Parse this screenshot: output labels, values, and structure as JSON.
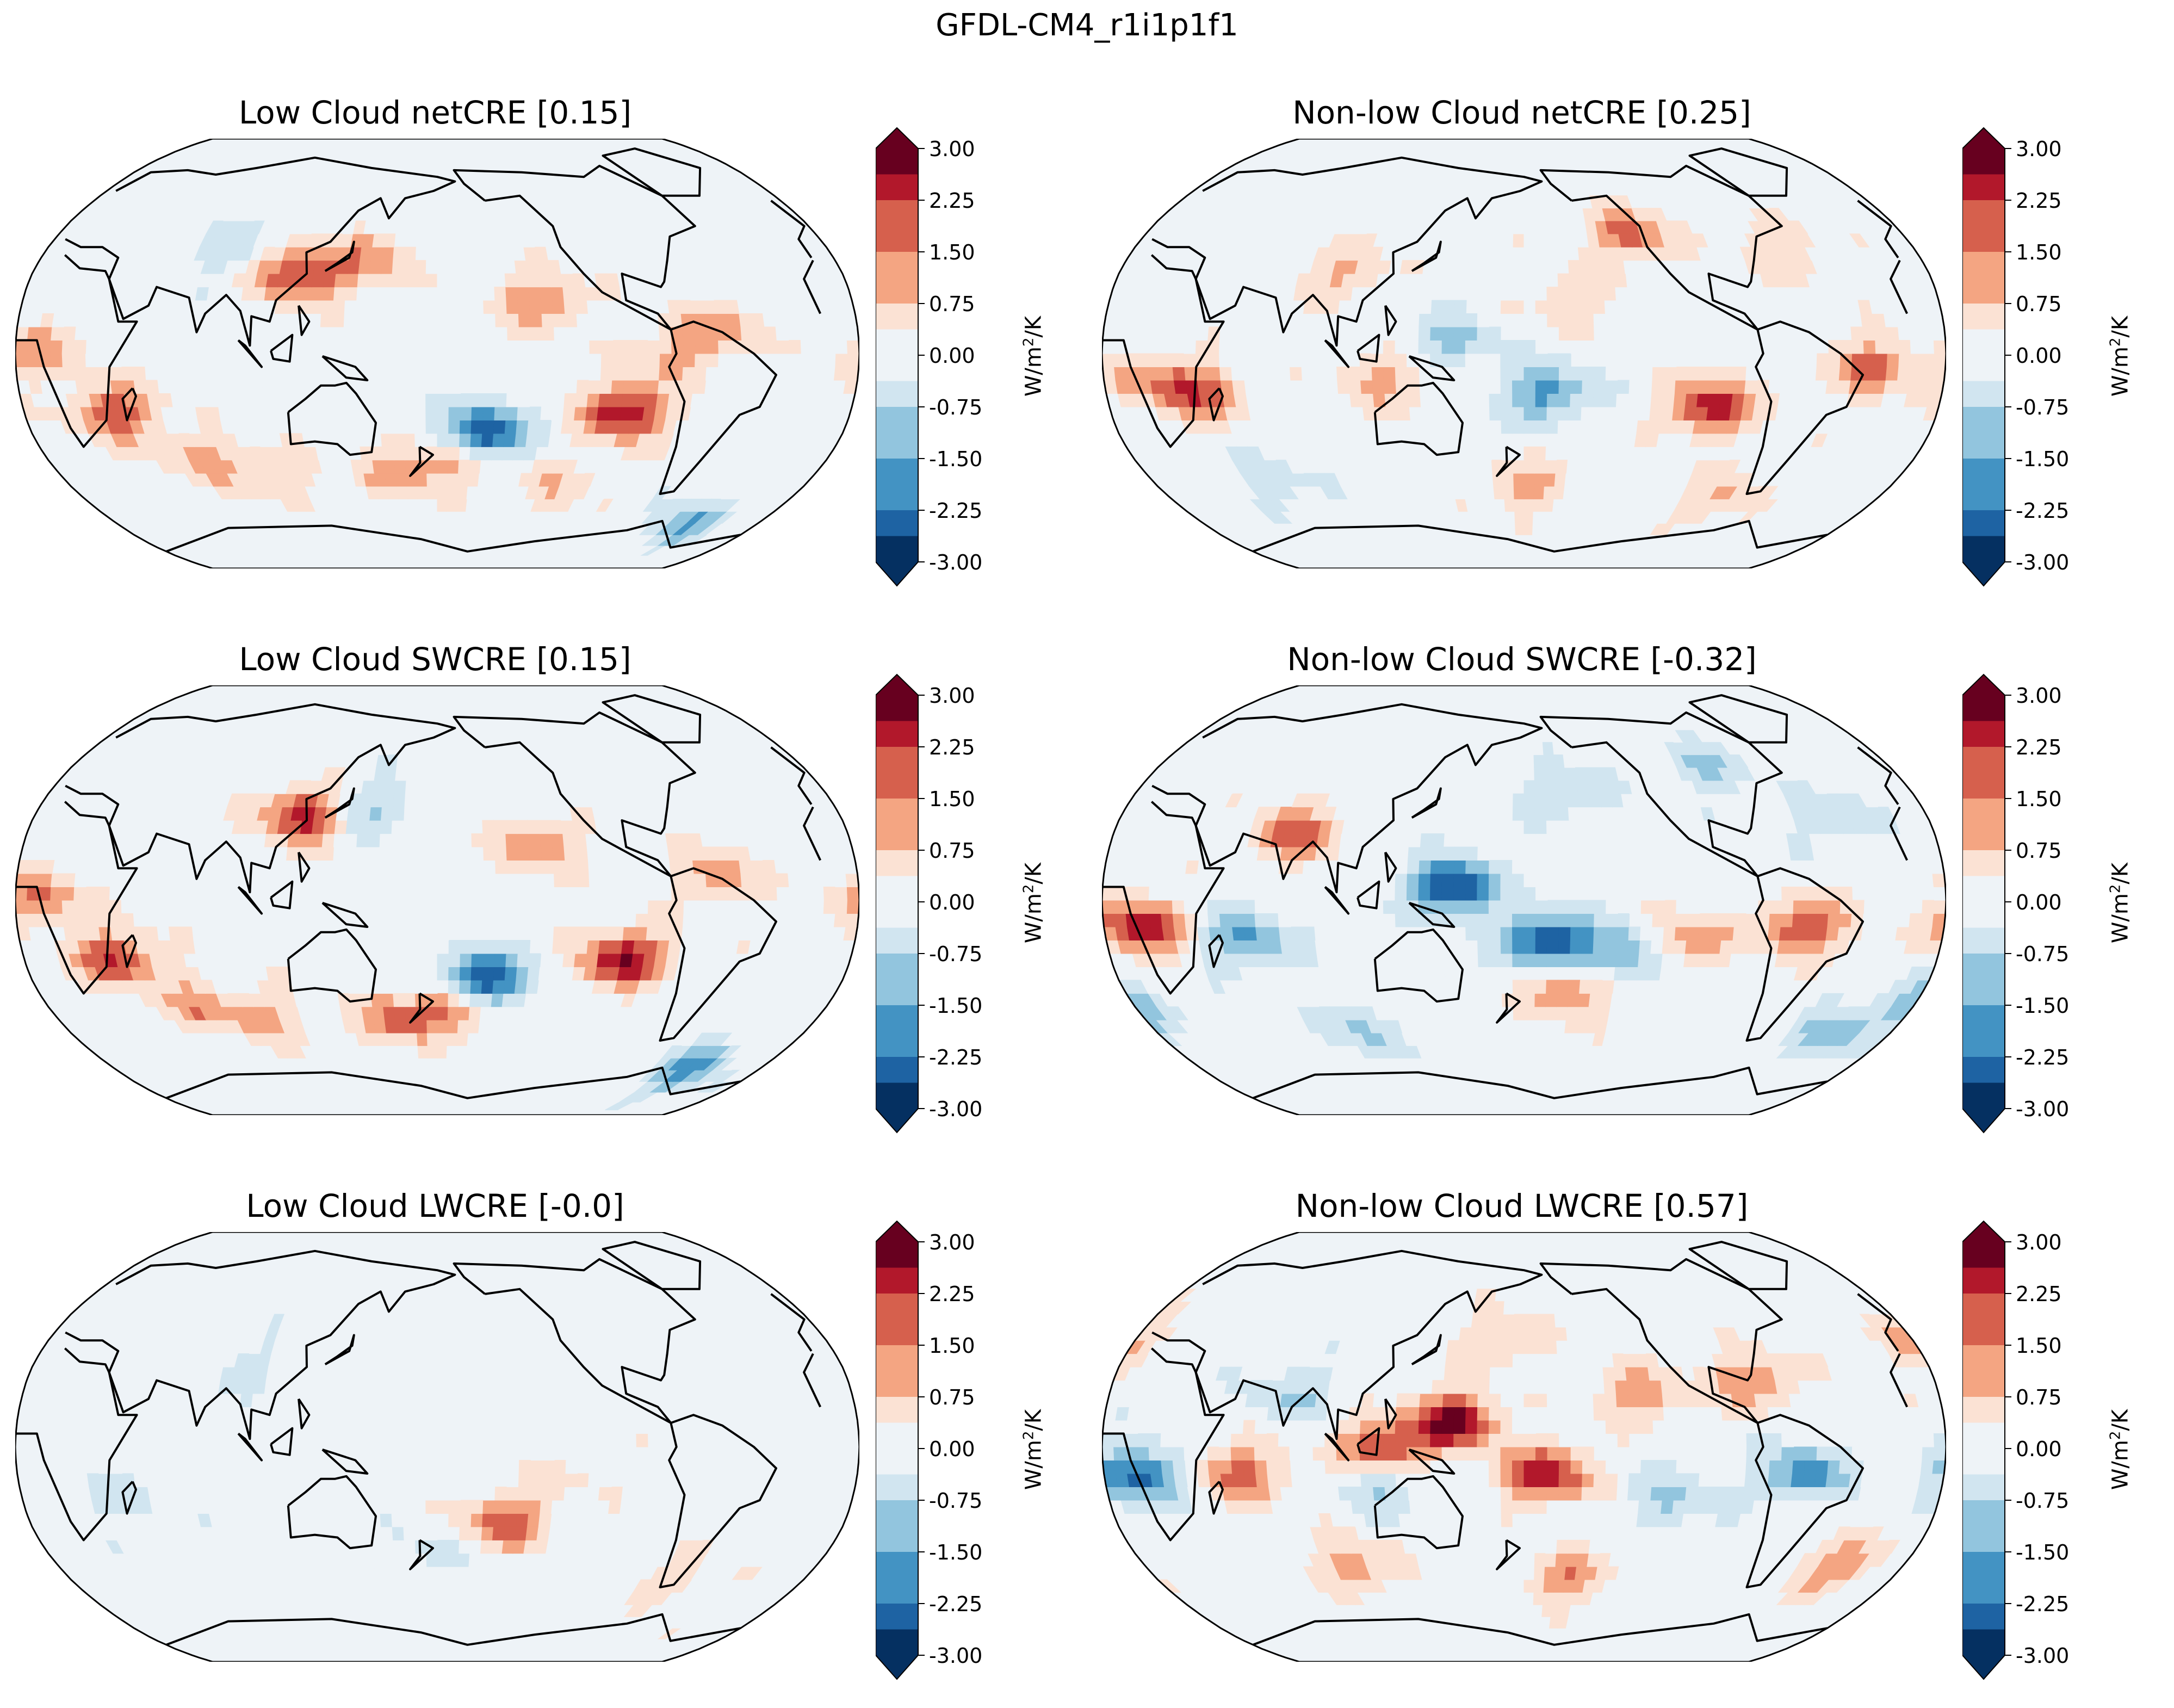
{
  "figure": {
    "title": "GFDL-CM4_r1i1p1f1"
  },
  "colorbar": {
    "label_prefix": "W/m",
    "label_exponent": "2",
    "label_suffix": "/K",
    "ticks": [
      "3.00",
      "2.25",
      "1.50",
      "0.75",
      "0.00",
      "-0.75",
      "-1.50",
      "-2.25",
      "-3.00"
    ],
    "tick_values": [
      3.0,
      2.25,
      1.5,
      0.75,
      0.0,
      -0.75,
      -1.5,
      -2.25,
      -3.0
    ],
    "range": [
      -3.0,
      3.0
    ],
    "extend": "both",
    "colormap": "RdBu_r",
    "colors": [
      "#053061",
      "#1e63a3",
      "#4393c3",
      "#92c5de",
      "#d1e5f0",
      "#eef3f7",
      "#fbe2d4",
      "#f4a582",
      "#d6604d",
      "#b2182b",
      "#67001f"
    ]
  },
  "panels": [
    {
      "title": "Low Cloud netCRE [0.15]",
      "variable": "netCRE",
      "cloud": "Low Cloud",
      "global_mean": 0.15
    },
    {
      "title": "Non-low Cloud netCRE [0.25]",
      "variable": "netCRE",
      "cloud": "Non-low Cloud",
      "global_mean": 0.25
    },
    {
      "title": "Low Cloud SWCRE [0.15]",
      "variable": "SWCRE",
      "cloud": "Low Cloud",
      "global_mean": 0.15
    },
    {
      "title": "Non-low Cloud SWCRE [-0.32]",
      "variable": "SWCRE",
      "cloud": "Non-low Cloud",
      "global_mean": -0.32
    },
    {
      "title": "Low Cloud LWCRE [-0.0]",
      "variable": "LWCRE",
      "cloud": "Low Cloud",
      "global_mean": -0.0
    },
    {
      "title": "Non-low Cloud LWCRE [0.57]",
      "variable": "LWCRE",
      "cloud": "Non-low Cloud",
      "global_mean": 0.57
    }
  ],
  "map": {
    "projection": "Robinson",
    "central_longitude": 180
  },
  "anomalies": [
    [
      {
        "lon": 120,
        "lat": 30,
        "v": 2.4
      },
      {
        "lon": 262,
        "lat": -22,
        "v": 2.8
      },
      {
        "lon": 200,
        "lat": -30,
        "v": -3
      },
      {
        "lon": 188,
        "lat": -40,
        "v": 1.4
      },
      {
        "lon": 160,
        "lat": -45,
        "v": 1.2
      },
      {
        "lon": 70,
        "lat": -40,
        "v": 1.0
      },
      {
        "lon": 40,
        "lat": -22,
        "v": 2.0
      },
      {
        "lon": 10,
        "lat": 0,
        "v": 1.3
      },
      {
        "lon": 300,
        "lat": 10,
        "v": 1.2
      },
      {
        "lon": 225,
        "lat": 20,
        "v": 1.5
      },
      {
        "lon": 150,
        "lat": 35,
        "v": 1.2
      },
      {
        "lon": 320,
        "lat": -65,
        "v": -1.5
      },
      {
        "lon": 80,
        "lat": 40,
        "v": -0.7
      },
      {
        "lon": 280,
        "lat": 0,
        "v": 1.0
      },
      {
        "lon": 240,
        "lat": -50,
        "v": 0.8
      },
      {
        "lon": 100,
        "lat": -45,
        "v": 1.0
      }
    ],
    [
      {
        "lon": 262,
        "lat": -20,
        "v": 2.6
      },
      {
        "lon": 230,
        "lat": 45,
        "v": 1.8
      },
      {
        "lon": 190,
        "lat": -15,
        "v": -1.8
      },
      {
        "lon": 150,
        "lat": 5,
        "v": -1.0
      },
      {
        "lon": 40,
        "lat": -15,
        "v": 1.8
      },
      {
        "lon": 20,
        "lat": -10,
        "v": 1.2
      },
      {
        "lon": 330,
        "lat": -5,
        "v": 1.8
      },
      {
        "lon": 180,
        "lat": -50,
        "v": 1.2
      },
      {
        "lon": 120,
        "lat": -10,
        "v": 1.2
      },
      {
        "lon": 200,
        "lat": 20,
        "v": 0.8
      },
      {
        "lon": 280,
        "lat": -55,
        "v": 1.0
      },
      {
        "lon": 60,
        "lat": -50,
        "v": -0.6
      },
      {
        "lon": 100,
        "lat": 30,
        "v": 1.0
      },
      {
        "lon": 300,
        "lat": 40,
        "v": 0.9
      }
    ],
    [
      {
        "lon": 120,
        "lat": 32,
        "v": 2.5
      },
      {
        "lon": 262,
        "lat": -22,
        "v": 2.8
      },
      {
        "lon": 200,
        "lat": -30,
        "v": -3
      },
      {
        "lon": 188,
        "lat": -40,
        "v": 1.8
      },
      {
        "lon": 160,
        "lat": -45,
        "v": 1.6
      },
      {
        "lon": 40,
        "lat": -22,
        "v": 2.2
      },
      {
        "lon": 70,
        "lat": -40,
        "v": 1.3
      },
      {
        "lon": 300,
        "lat": 10,
        "v": 1.2
      },
      {
        "lon": 225,
        "lat": 20,
        "v": 1.4
      },
      {
        "lon": 320,
        "lat": -65,
        "v": -1.8
      },
      {
        "lon": 150,
        "lat": 35,
        "v": -1.0
      },
      {
        "lon": 10,
        "lat": 0,
        "v": 1.6
      },
      {
        "lon": 100,
        "lat": -45,
        "v": 1.0
      }
    ],
    [
      {
        "lon": 150,
        "lat": 5,
        "v": -3
      },
      {
        "lon": 190,
        "lat": -15,
        "v": -2.8
      },
      {
        "lon": 225,
        "lat": -20,
        "v": -1.6
      },
      {
        "lon": 15,
        "lat": -10,
        "v": 2.6
      },
      {
        "lon": 300,
        "lat": -10,
        "v": 2.2
      },
      {
        "lon": 250,
        "lat": -15,
        "v": 1.5
      },
      {
        "lon": 80,
        "lat": 25,
        "v": 1.8
      },
      {
        "lon": 200,
        "lat": -35,
        "v": 1.6
      },
      {
        "lon": 60,
        "lat": -15,
        "v": -1.6
      },
      {
        "lon": 0,
        "lat": -40,
        "v": -1.2
      },
      {
        "lon": 330,
        "lat": -50,
        "v": -1.3
      },
      {
        "lon": 100,
        "lat": -50,
        "v": -1.0
      },
      {
        "lon": 200,
        "lat": 40,
        "v": -0.9
      },
      {
        "lon": 270,
        "lat": 50,
        "v": -1.0
      },
      {
        "lon": 320,
        "lat": 30,
        "v": -0.8
      }
    ],
    [
      {
        "lon": 210,
        "lat": -28,
        "v": 2.0
      },
      {
        "lon": 180,
        "lat": -40,
        "v": -0.5
      },
      {
        "lon": 100,
        "lat": 30,
        "v": -0.5
      },
      {
        "lon": 240,
        "lat": -10,
        "v": 0.4
      },
      {
        "lon": 40,
        "lat": -20,
        "v": -0.5
      },
      {
        "lon": 300,
        "lat": -50,
        "v": 0.6
      }
    ],
    [
      {
        "lon": 150,
        "lat": 10,
        "v": 3
      },
      {
        "lon": 190,
        "lat": -10,
        "v": 2.6
      },
      {
        "lon": 120,
        "lat": 0,
        "v": 2.4
      },
      {
        "lon": 15,
        "lat": -10,
        "v": -2.4
      },
      {
        "lon": 300,
        "lat": -10,
        "v": -1.8
      },
      {
        "lon": 80,
        "lat": 20,
        "v": -0.9
      },
      {
        "lon": 60,
        "lat": -10,
        "v": 1.8
      },
      {
        "lon": 200,
        "lat": -50,
        "v": 1.5
      },
      {
        "lon": 100,
        "lat": -45,
        "v": 1.3
      },
      {
        "lon": 330,
        "lat": -45,
        "v": 1.4
      },
      {
        "lon": 230,
        "lat": 20,
        "v": 1.4
      },
      {
        "lon": 280,
        "lat": 25,
        "v": 1.5
      },
      {
        "lon": 0,
        "lat": 40,
        "v": 1.0
      },
      {
        "lon": 170,
        "lat": 40,
        "v": 1.0
      },
      {
        "lon": 245,
        "lat": -20,
        "v": -1.0
      },
      {
        "lon": 120,
        "lat": -15,
        "v": -1.0
      }
    ]
  ]
}
